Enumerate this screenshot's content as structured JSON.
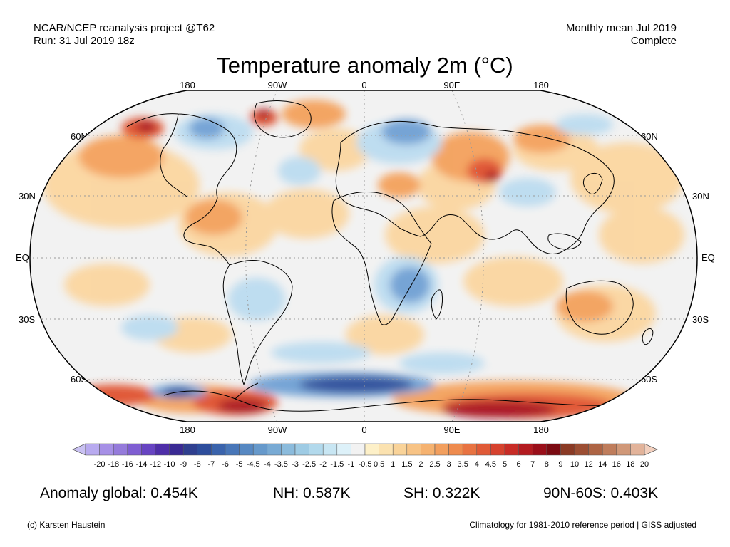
{
  "header": {
    "source_line1": "NCAR/NCEP reanalysis project @T62",
    "source_line2": "Run: 31 Jul 2019 18z",
    "period_line1": "Monthly mean Jul 2019",
    "period_line2": "Complete"
  },
  "title": "Temperature anomaly 2m (°C)",
  "map": {
    "projection": "Robinson",
    "lon_labels_top": [
      "180",
      "90W",
      "0",
      "90E",
      "180"
    ],
    "lon_labels_bottom": [
      "180",
      "90W",
      "0",
      "90E",
      "180"
    ],
    "lat_labels_left": [
      "60N",
      "30N",
      "EQ",
      "30S",
      "60S"
    ],
    "lat_labels_right": [
      "60N",
      "30N",
      "EQ",
      "30S",
      "60S"
    ],
    "colors": {
      "background": "#f2f2f2",
      "warm_light": "#fbd6a0",
      "warm_mid": "#f4a15c",
      "warm_strong": "#e0512f",
      "warm_extreme": "#a80f1e",
      "cool_light": "#bcdcf0",
      "cool_mid": "#6fa0d4",
      "cool_strong": "#2b4c9a",
      "coastline": "#000000",
      "graticule": "#9a9a9a"
    }
  },
  "colorbar": {
    "labels": [
      "-20",
      "-18",
      "-16",
      "-14",
      "-12",
      "-10",
      "-9",
      "-8",
      "-7",
      "-6",
      "-5",
      "-4.5",
      "-4",
      "-3.5",
      "-3",
      "-2.5",
      "-2",
      "-1.5",
      "-1",
      "-0.5",
      "0.5",
      "1",
      "1.5",
      "2",
      "2.5",
      "3",
      "3.5",
      "4",
      "4.5",
      "5",
      "6",
      "7",
      "8",
      "9",
      "10",
      "12",
      "14",
      "16",
      "18",
      "20"
    ],
    "colors": [
      "#c9c1f2",
      "#b8aaef",
      "#a690e6",
      "#957bdb",
      "#7f5ed2",
      "#6744c2",
      "#4e2ea8",
      "#3a2a94",
      "#2f3f8f",
      "#2d4d9c",
      "#3a63ac",
      "#4876b8",
      "#5688c2",
      "#6699cb",
      "#78aad4",
      "#8bbbdc",
      "#9ecbe4",
      "#b2d9ec",
      "#c8e6f3",
      "#ddf1f9",
      "#f2f2f2",
      "#fdf0c8",
      "#fbe2b0",
      "#f9d399",
      "#f7c385",
      "#f5b270",
      "#f29f5e",
      "#ee8b4e",
      "#e87342",
      "#e05a37",
      "#d6422e",
      "#c82c26",
      "#b31b20",
      "#9a0f1a",
      "#7b0b12",
      "#8a3a25",
      "#9c4e33",
      "#ad6444",
      "#bf7d5c",
      "#d09878",
      "#e2b39a",
      "#f2cfbd"
    ]
  },
  "stats": {
    "global": "Anomaly global: 0.454K",
    "nh": "NH: 0.587K",
    "sh": "SH: 0.322K",
    "arctic": "90N-60S: 0.403K"
  },
  "footer": {
    "credit": "(c) Karsten Haustein",
    "note": "Climatology for 1981-2010 reference period | GISS adjusted"
  }
}
